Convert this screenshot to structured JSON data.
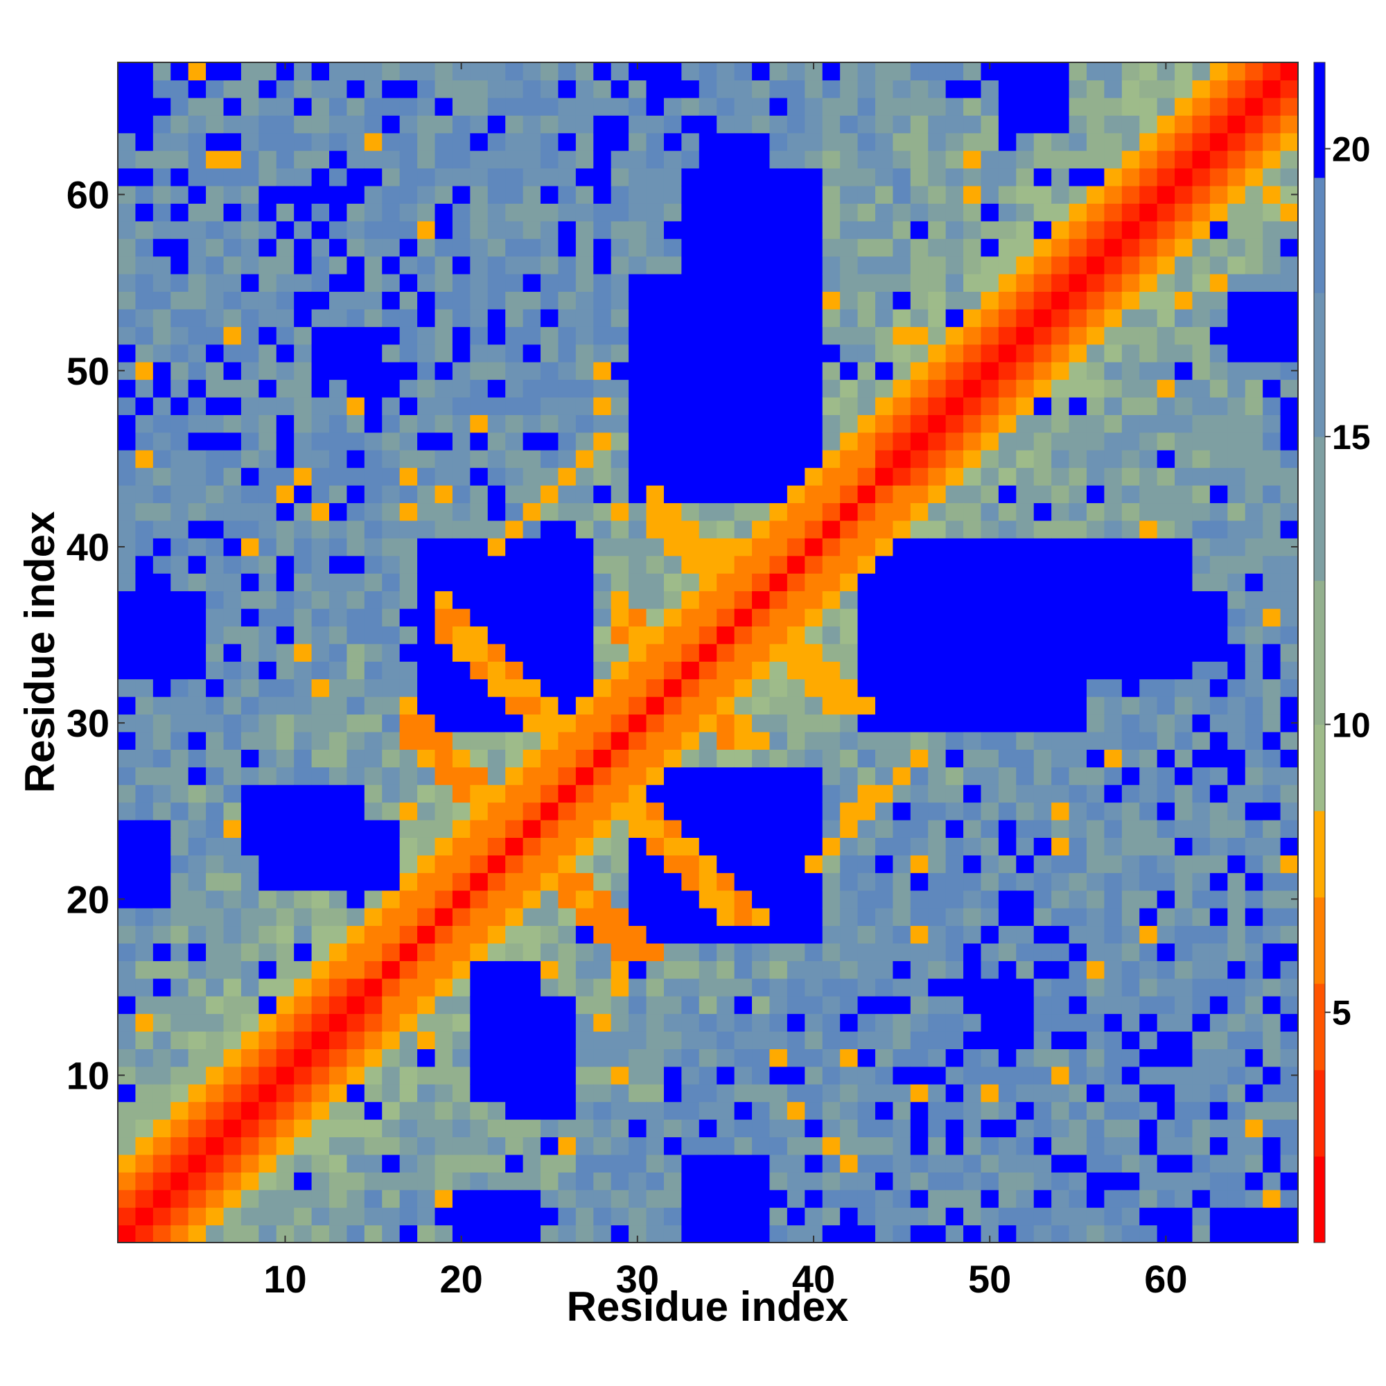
{
  "chart_data": {
    "type": "heatmap",
    "title": "",
    "xlabel": "Residue index",
    "ylabel": "Residue index",
    "n": 67,
    "xlim": [
      1,
      67
    ],
    "ylim": [
      1,
      67
    ],
    "x_ticks": [
      10,
      20,
      30,
      40,
      50,
      60
    ],
    "y_ticks": [
      10,
      20,
      30,
      40,
      50,
      60
    ],
    "colorbar": {
      "ticks": [
        5,
        10,
        15,
        20
      ],
      "range": [
        1,
        21.5
      ],
      "levels": [
        {
          "max": 2.5,
          "color": "#ff0000"
        },
        {
          "max": 4.0,
          "color": "#ff2a00"
        },
        {
          "max": 5.5,
          "color": "#ff5500"
        },
        {
          "max": 7.0,
          "color": "#ff8000"
        },
        {
          "max": 8.5,
          "color": "#ffaa00"
        },
        {
          "max": 10.0,
          "color": "#9ebb8a"
        },
        {
          "max": 12.5,
          "color": "#93b08e"
        },
        {
          "max": 15.0,
          "color": "#7e9fa2"
        },
        {
          "max": 17.5,
          "color": "#6d93b4"
        },
        {
          "max": 19.5,
          "color": "#5f88bd"
        },
        {
          "max": 21.5,
          "color": "#0000ff"
        }
      ]
    },
    "diagonal": {
      "value": 0.5,
      "neighbor_distances": [
        3.8,
        5.5,
        6.5,
        8.0
      ]
    },
    "secondary_structure": {
      "helices": [
        [
          1,
          15
        ],
        [
          44,
          67
        ]
      ],
      "antiparallel_contacts": [
        {
          "center": 47,
          "span": [
            17,
            31
          ],
          "value": 6.0
        },
        {
          "center": 65,
          "span": [
            29,
            36
          ],
          "value": 6.5
        },
        {
          "center": 55,
          "span": [
            19,
            27
          ],
          "value": 6.5
        },
        {
          "center": 73,
          "span": [
            31,
            38
          ],
          "value": 7.0
        }
      ],
      "parallel_contacts": [
        {
          "offset": 18,
          "span": [
            22,
            28
          ],
          "value": 7.5
        }
      ]
    },
    "far_blocks": [
      {
        "rows": [
          33,
          40
        ],
        "cols": [
          19,
          26
        ],
        "value": 21
      },
      {
        "rows": [
          33,
          40
        ],
        "cols": [
          43,
          61
        ],
        "value": 21
      },
      {
        "rows": [
          18,
          27
        ],
        "cols": [
          30,
          40
        ],
        "value": 21
      },
      {
        "rows": [
          43,
          55
        ],
        "cols": [
          30,
          38
        ],
        "value": 21
      },
      {
        "rows": [
          57,
          63
        ],
        "cols": [
          34,
          37
        ],
        "value": 21
      },
      {
        "rows": [
          9,
          16
        ],
        "cols": [
          21,
          24
        ],
        "value": 21
      },
      {
        "rows": [
          23,
          26
        ],
        "cols": [
          8,
          14
        ],
        "value": 21
      },
      {
        "rows": [
          1,
          4
        ],
        "cols": [
          33,
          37
        ],
        "value": 21
      },
      {
        "rows": [
          33,
          37
        ],
        "cols": [
          1,
          5
        ],
        "value": 21
      },
      {
        "rows": [
          64,
          67
        ],
        "cols": [
          1,
          2
        ],
        "value": 21
      },
      {
        "rows": [
          64,
          67
        ],
        "cols": [
          51,
          54
        ],
        "value": 21
      },
      {
        "rows": [
          51,
          54
        ],
        "cols": [
          65,
          67
        ],
        "value": 21
      },
      {
        "rows": [
          1,
          2
        ],
        "cols": [
          64,
          67
        ],
        "value": 21
      },
      {
        "rows": [
          1,
          3
        ],
        "cols": [
          20,
          24
        ],
        "value": 21
      },
      {
        "rows": [
          12,
          15
        ],
        "cols": [
          50,
          52
        ],
        "value": 21
      }
    ]
  }
}
